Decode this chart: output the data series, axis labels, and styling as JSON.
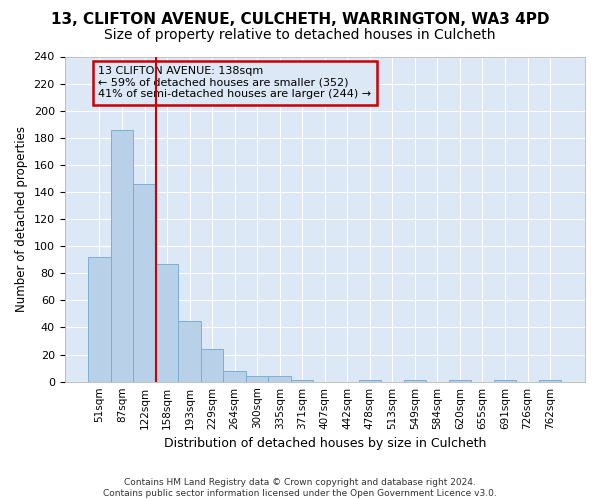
{
  "title1": "13, CLIFTON AVENUE, CULCHETH, WARRINGTON, WA3 4PD",
  "title2": "Size of property relative to detached houses in Culcheth",
  "xlabel": "Distribution of detached houses by size in Culcheth",
  "ylabel": "Number of detached properties",
  "bar_labels": [
    "51sqm",
    "87sqm",
    "122sqm",
    "158sqm",
    "193sqm",
    "229sqm",
    "264sqm",
    "300sqm",
    "335sqm",
    "371sqm",
    "407sqm",
    "442sqm",
    "478sqm",
    "513sqm",
    "549sqm",
    "584sqm",
    "620sqm",
    "655sqm",
    "691sqm",
    "726sqm",
    "762sqm"
  ],
  "bar_values": [
    92,
    186,
    146,
    87,
    45,
    24,
    8,
    4,
    4,
    1,
    0,
    0,
    1,
    0,
    1,
    0,
    1,
    0,
    1,
    0,
    1
  ],
  "bar_color": "#b8d0e8",
  "bar_edge_color": "#7aafd4",
  "vline_x": 2.5,
  "vline_color": "#cc0000",
  "annotation_lines": [
    "13 CLIFTON AVENUE: 138sqm",
    "← 59% of detached houses are smaller (352)",
    "41% of semi-detached houses are larger (244) →"
  ],
  "box_edge_color": "#cc0000",
  "ylim": [
    0,
    240
  ],
  "yticks": [
    0,
    20,
    40,
    60,
    80,
    100,
    120,
    140,
    160,
    180,
    200,
    220,
    240
  ],
  "footer": "Contains HM Land Registry data © Crown copyright and database right 2024.\nContains public sector information licensed under the Open Government Licence v3.0.",
  "plot_bg_color": "#dce8f5",
  "fig_bg_color": "#ffffff",
  "grid_color": "#ffffff",
  "title1_fontsize": 11,
  "title2_fontsize": 10
}
